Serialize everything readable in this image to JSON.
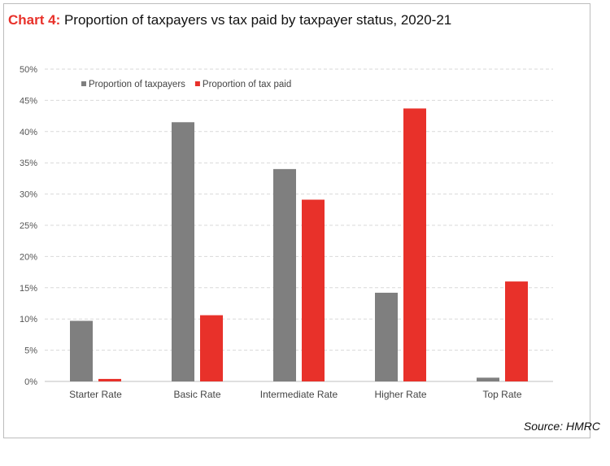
{
  "title": {
    "prefix": "Chart 4:",
    "text": "Proportion of taxpayers vs tax paid by taxpayer status, 2020-21"
  },
  "source": "Source: HMRC",
  "colors": {
    "series_taxpayers": "#7f7f7f",
    "series_tax_paid": "#e8312a",
    "title_prefix": "#e8312a"
  },
  "chart_data": {
    "type": "bar",
    "title": "Proportion of taxpayers vs tax paid by taxpayer status, 2020-21",
    "xlabel": "",
    "ylabel": "",
    "categories": [
      "Starter Rate",
      "Basic Rate",
      "Intermediate Rate",
      "Higher Rate",
      "Top Rate"
    ],
    "series": [
      {
        "name": "Proportion of taxpayers",
        "color": "#7f7f7f",
        "values": [
          9.7,
          41.5,
          34.0,
          14.2,
          0.6
        ]
      },
      {
        "name": "Proportion of tax paid",
        "color": "#e8312a",
        "values": [
          0.4,
          10.6,
          29.1,
          43.7,
          16.0
        ]
      }
    ],
    "ylim": [
      0,
      50
    ],
    "yticks": [
      0,
      5,
      10,
      15,
      20,
      25,
      30,
      35,
      40,
      45,
      50
    ],
    "ytick_labels": [
      "0%",
      "5%",
      "10%",
      "15%",
      "20%",
      "25%",
      "30%",
      "35%",
      "40%",
      "45%",
      "50%"
    ],
    "grid": true,
    "legend": "top-left"
  }
}
